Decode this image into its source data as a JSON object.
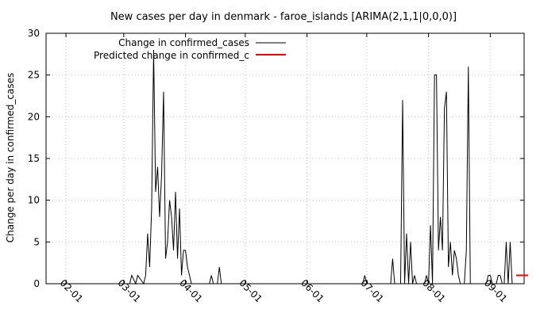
{
  "chart_data": {
    "type": "line",
    "title": "New cases per day in denmark - faroe_islands [ARIMA(2,1,1|0,0,0)]",
    "xlabel": "",
    "ylabel": "Change per day in confirmed_cases",
    "ylim": [
      0,
      30
    ],
    "yticks": [
      "0",
      "5",
      "10",
      "15",
      "20",
      "25",
      "30"
    ],
    "xticks": [
      "02-01",
      "03-01",
      "04-01",
      "05-01",
      "06-01",
      "07-01",
      "08-01",
      "09-01"
    ],
    "grid": true,
    "legend_position": "top-left",
    "series": [
      {
        "name": "Change in confirmed_cases",
        "color": "#000000",
        "x": [
          "2020-01-22",
          "2020-03-04",
          "2020-03-05",
          "2020-03-07",
          "2020-03-08",
          "2020-03-11",
          "2020-03-12",
          "2020-03-13",
          "2020-03-14",
          "2020-03-15",
          "2020-03-16",
          "2020-03-17",
          "2020-03-18",
          "2020-03-19",
          "2020-03-20",
          "2020-03-21",
          "2020-03-22",
          "2020-03-23",
          "2020-03-24",
          "2020-03-25",
          "2020-03-26",
          "2020-03-27",
          "2020-03-28",
          "2020-03-29",
          "2020-03-30",
          "2020-03-31",
          "2020-04-01",
          "2020-04-02",
          "2020-04-03",
          "2020-04-04",
          "2020-04-13",
          "2020-04-14",
          "2020-04-15",
          "2020-04-17",
          "2020-04-18",
          "2020-04-19",
          "2020-06-29",
          "2020-06-30",
          "2020-07-01",
          "2020-07-13",
          "2020-07-14",
          "2020-07-15",
          "2020-07-18",
          "2020-07-19",
          "2020-07-20",
          "2020-07-21",
          "2020-07-22",
          "2020-07-23",
          "2020-07-24",
          "2020-07-25",
          "2020-07-26",
          "2020-07-27",
          "2020-07-28",
          "2020-07-29",
          "2020-07-30",
          "2020-07-31",
          "2020-08-01",
          "2020-08-02",
          "2020-08-03",
          "2020-08-04",
          "2020-08-05",
          "2020-08-06",
          "2020-08-07",
          "2020-08-08",
          "2020-08-09",
          "2020-08-10",
          "2020-08-11",
          "2020-08-12",
          "2020-08-13",
          "2020-08-14",
          "2020-08-15",
          "2020-08-16",
          "2020-08-17",
          "2020-08-18",
          "2020-08-19",
          "2020-08-20",
          "2020-08-21",
          "2020-08-22",
          "2020-08-23",
          "2020-08-24",
          "2020-08-25",
          "2020-08-30",
          "2020-08-31",
          "2020-09-01",
          "2020-09-02",
          "2020-09-04",
          "2020-09-05",
          "2020-09-06",
          "2020-09-07",
          "2020-09-08",
          "2020-09-09",
          "2020-09-10",
          "2020-09-11",
          "2020-09-12"
        ],
        "y": [
          0,
          0,
          1,
          0,
          1,
          0,
          1,
          6,
          2,
          9,
          28,
          11,
          14,
          8,
          13,
          23,
          3,
          5,
          10,
          8,
          4,
          11,
          3,
          9,
          1,
          4,
          4,
          2,
          1,
          0,
          0,
          1,
          0,
          0,
          2,
          0,
          0,
          1,
          0,
          0,
          3,
          0,
          0,
          22,
          0,
          6,
          0,
          5,
          0,
          1,
          0,
          0,
          0,
          0,
          0,
          1,
          0,
          7,
          0,
          25,
          25,
          4,
          8,
          4,
          21,
          23,
          2,
          5,
          1,
          4,
          3,
          1,
          0,
          0,
          0,
          4,
          26,
          0,
          0,
          0,
          0,
          0,
          1,
          1,
          0,
          0,
          1,
          1,
          0,
          0,
          5,
          0,
          5,
          0
        ]
      },
      {
        "name": "Predicted change in confirmed_c",
        "color": "#ff0000",
        "x": [
          "2020-09-14",
          "2020-09-20"
        ],
        "y": [
          1,
          1
        ]
      }
    ]
  }
}
